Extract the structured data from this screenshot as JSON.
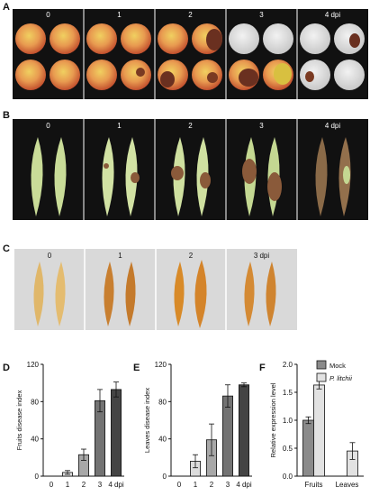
{
  "figure": {
    "panels": {
      "A": {
        "letter": "A",
        "labels": [
          "0",
          "1",
          "2",
          "3",
          "4 dpi"
        ]
      },
      "B": {
        "letter": "B",
        "labels": [
          "0",
          "1",
          "2",
          "3",
          "4 dpi"
        ]
      },
      "C": {
        "letter": "C",
        "labels": [
          "0",
          "1",
          "2",
          "3 dpi"
        ]
      },
      "D": {
        "letter": "D"
      },
      "E": {
        "letter": "E"
      },
      "F": {
        "letter": "F"
      }
    }
  },
  "chart_data": [
    {
      "id": "D",
      "type": "bar",
      "categories": [
        "0",
        "1",
        "2",
        "3",
        "4 dpi"
      ],
      "values": [
        0,
        4,
        23,
        81,
        93
      ],
      "errors": [
        0,
        2,
        6,
        12,
        8
      ],
      "bar_colors": [
        "#ffffff",
        "#dcdcdc",
        "#a8a8a8",
        "#737373",
        "#444444"
      ],
      "title": "",
      "xlabel": "",
      "ylabel": "Fruits disease index",
      "ylim": [
        0,
        120
      ],
      "yticks": [
        0,
        40,
        80,
        120
      ],
      "grid": false
    },
    {
      "id": "E",
      "type": "bar",
      "categories": [
        "0",
        "1",
        "2",
        "3",
        "4 dpi"
      ],
      "values": [
        0,
        16,
        39,
        86,
        98
      ],
      "errors": [
        0,
        7,
        17,
        12,
        2
      ],
      "bar_colors": [
        "#ffffff",
        "#dcdcdc",
        "#a8a8a8",
        "#737373",
        "#444444"
      ],
      "title": "",
      "xlabel": "",
      "ylabel": "Leaves disease index",
      "ylim": [
        0,
        120
      ],
      "yticks": [
        0,
        40,
        80,
        120
      ],
      "grid": false
    },
    {
      "id": "F",
      "type": "bar",
      "categories": [
        "Fruits",
        "Leaves"
      ],
      "series": [
        {
          "name": "Mock",
          "values": [
            1.0,
            0.0
          ],
          "errors": [
            0.06,
            0.0
          ],
          "color": "#8a8a8a"
        },
        {
          "name": "P. litchii",
          "values": [
            1.63,
            0.45
          ],
          "errors": [
            0.07,
            0.15
          ],
          "color": "#e2e2e2"
        }
      ],
      "title": "",
      "xlabel": "",
      "ylabel": "Relative expression level",
      "ylim": [
        0,
        2.0
      ],
      "yticks": [
        "0.0",
        "0.5",
        "1.0",
        "1.5",
        "2.0"
      ],
      "legend_position": "top-right",
      "grid": false
    }
  ]
}
